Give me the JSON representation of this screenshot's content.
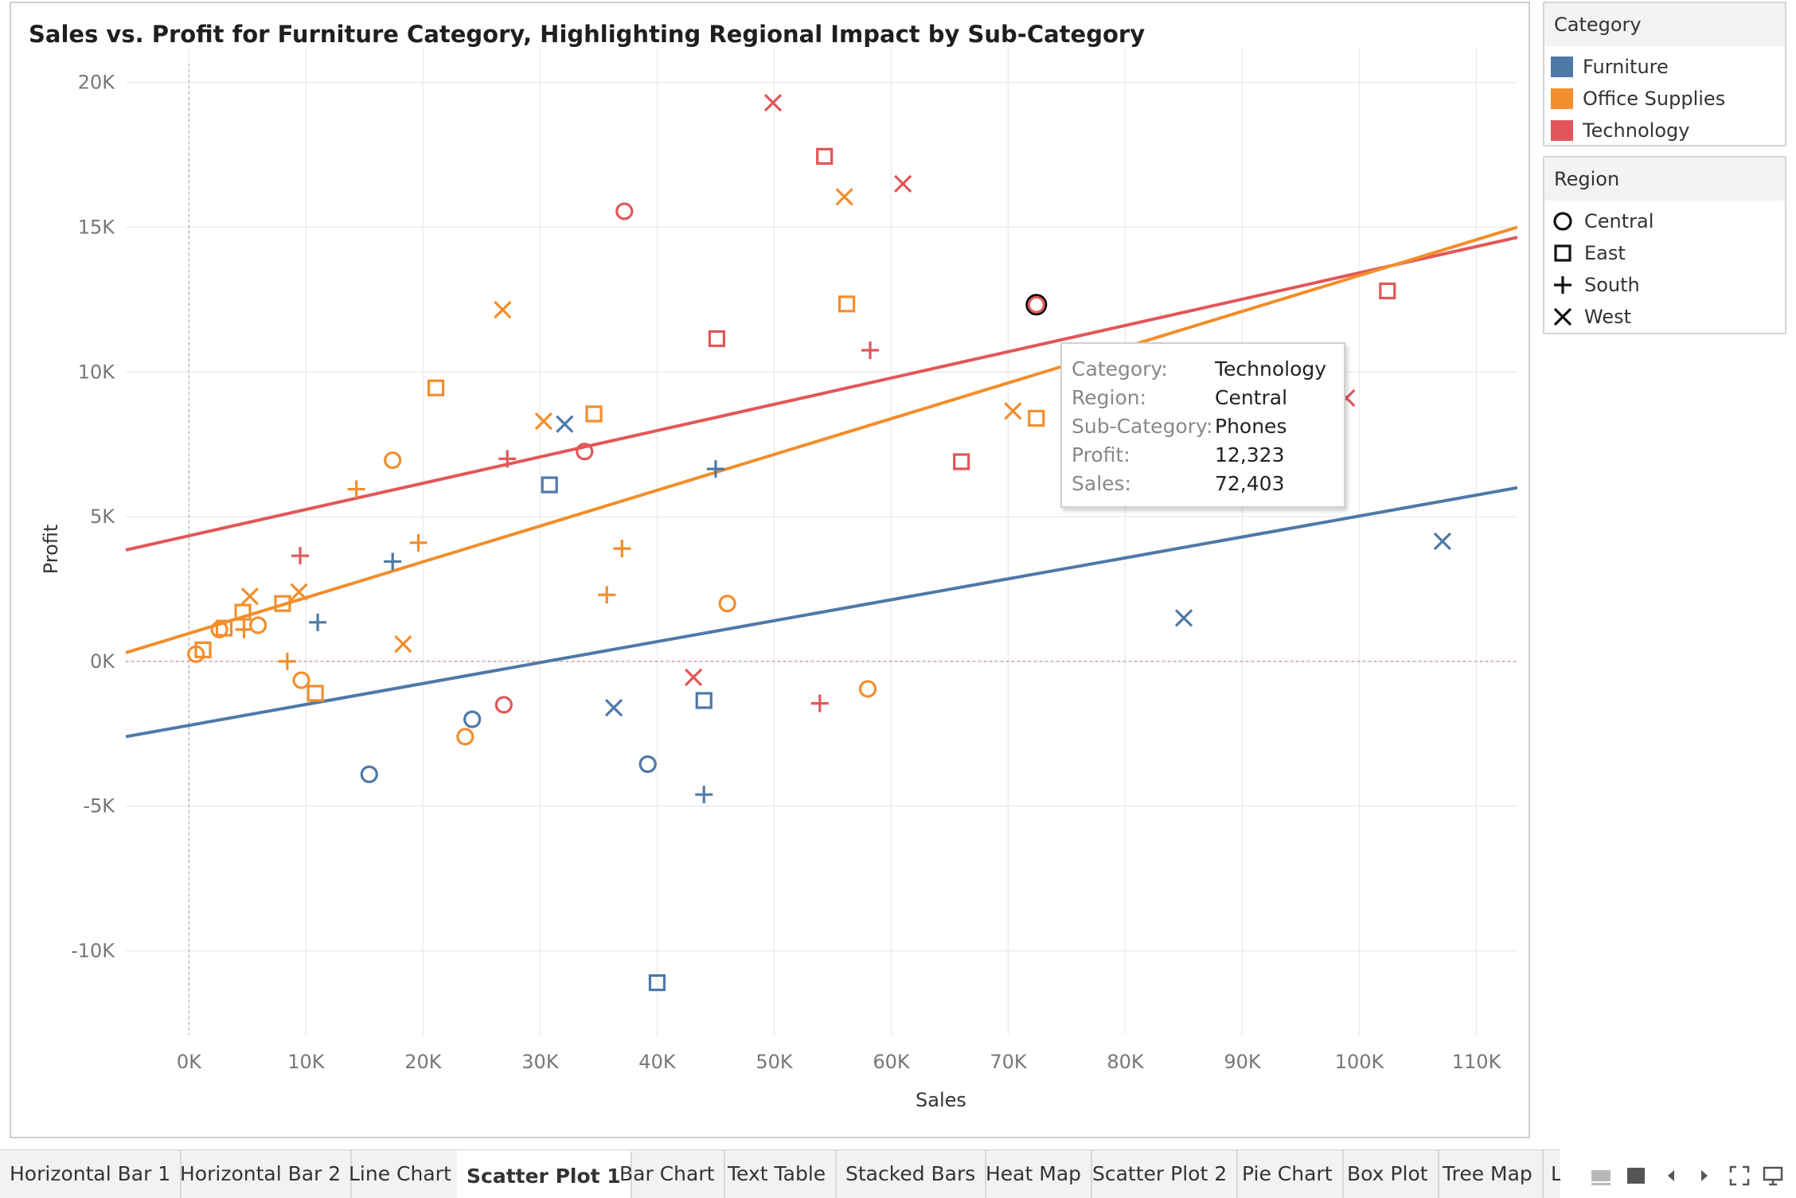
{
  "chart_data": {
    "type": "scatter",
    "title": "Sales vs. Profit for Furniture Category, Highlighting Regional Impact by Sub-Category",
    "xlabel": "Sales",
    "ylabel": "Profit",
    "xlim": [
      -5400,
      113500
    ],
    "ylim": [
      -12900,
      21200
    ],
    "xticks": [
      0,
      10000,
      20000,
      30000,
      40000,
      50000,
      60000,
      70000,
      80000,
      90000,
      100000,
      110000
    ],
    "xtick_labels": [
      "0K",
      "10K",
      "20K",
      "30K",
      "40K",
      "50K",
      "60K",
      "70K",
      "80K",
      "90K",
      "100K",
      "110K"
    ],
    "yticks": [
      -10000,
      -5000,
      0,
      5000,
      10000,
      15000,
      20000
    ],
    "ytick_labels": [
      "-10K",
      "-5K",
      "0K",
      "5K",
      "10K",
      "15K",
      "20K"
    ],
    "grid": true,
    "legend_position": "right",
    "series": [
      {
        "name": "Furniture",
        "color": "#4e79a7",
        "points": [
          {
            "x": 15400,
            "y": -3900,
            "shape": "circle"
          },
          {
            "x": 24200,
            "y": -2000,
            "shape": "circle"
          },
          {
            "x": 39200,
            "y": -3550,
            "shape": "circle"
          },
          {
            "x": 30800,
            "y": 6100,
            "shape": "square"
          },
          {
            "x": 44000,
            "y": -1350,
            "shape": "square"
          },
          {
            "x": 40000,
            "y": -11100,
            "shape": "square"
          },
          {
            "x": 17400,
            "y": 3450,
            "shape": "plus"
          },
          {
            "x": 11000,
            "y": 1350,
            "shape": "plus"
          },
          {
            "x": 45000,
            "y": 6650,
            "shape": "plus"
          },
          {
            "x": 44000,
            "y": -4600,
            "shape": "plus"
          },
          {
            "x": 32100,
            "y": 8200,
            "shape": "cross"
          },
          {
            "x": 36300,
            "y": -1600,
            "shape": "cross"
          },
          {
            "x": 85000,
            "y": 1500,
            "shape": "cross"
          },
          {
            "x": 107100,
            "y": 4150,
            "shape": "cross"
          }
        ]
      },
      {
        "name": "Office Supplies",
        "color": "#f28e2b",
        "points": [
          {
            "x": 17400,
            "y": 6950,
            "shape": "circle"
          },
          {
            "x": 600,
            "y": 250,
            "shape": "circle"
          },
          {
            "x": 2600,
            "y": 1100,
            "shape": "circle"
          },
          {
            "x": 5900,
            "y": 1250,
            "shape": "circle"
          },
          {
            "x": 9600,
            "y": -650,
            "shape": "circle"
          },
          {
            "x": 23600,
            "y": -2600,
            "shape": "circle"
          },
          {
            "x": 46000,
            "y": 2000,
            "shape": "circle"
          },
          {
            "x": 58000,
            "y": -950,
            "shape": "circle"
          },
          {
            "x": 21100,
            "y": 9450,
            "shape": "square"
          },
          {
            "x": 34600,
            "y": 8550,
            "shape": "square"
          },
          {
            "x": 56200,
            "y": 12350,
            "shape": "square"
          },
          {
            "x": 72400,
            "y": 8400,
            "shape": "square"
          },
          {
            "x": 1200,
            "y": 400,
            "shape": "square"
          },
          {
            "x": 3000,
            "y": 1150,
            "shape": "square"
          },
          {
            "x": 4600,
            "y": 1700,
            "shape": "square"
          },
          {
            "x": 8000,
            "y": 2000,
            "shape": "square"
          },
          {
            "x": 10800,
            "y": -1100,
            "shape": "square"
          },
          {
            "x": 14300,
            "y": 5950,
            "shape": "plus"
          },
          {
            "x": 19600,
            "y": 4100,
            "shape": "plus"
          },
          {
            "x": 37000,
            "y": 3900,
            "shape": "plus"
          },
          {
            "x": 35700,
            "y": 2300,
            "shape": "plus"
          },
          {
            "x": 8400,
            "y": 0,
            "shape": "plus"
          },
          {
            "x": 4700,
            "y": 1100,
            "shape": "plus"
          },
          {
            "x": 26800,
            "y": 12150,
            "shape": "cross"
          },
          {
            "x": 30300,
            "y": 8300,
            "shape": "cross"
          },
          {
            "x": 56000,
            "y": 16050,
            "shape": "cross"
          },
          {
            "x": 70400,
            "y": 8650,
            "shape": "cross"
          },
          {
            "x": 18300,
            "y": 600,
            "shape": "cross"
          },
          {
            "x": 9400,
            "y": 2400,
            "shape": "cross"
          },
          {
            "x": 5200,
            "y": 2250,
            "shape": "cross"
          }
        ]
      },
      {
        "name": "Technology",
        "color": "#e15759",
        "points": [
          {
            "x": 37200,
            "y": 15550,
            "shape": "circle"
          },
          {
            "x": 33800,
            "y": 7250,
            "shape": "circle"
          },
          {
            "x": 26900,
            "y": -1500,
            "shape": "circle"
          },
          {
            "x": 72403,
            "y": 12323,
            "shape": "circle",
            "selected": true
          },
          {
            "x": 54300,
            "y": 17450,
            "shape": "square"
          },
          {
            "x": 45100,
            "y": 11150,
            "shape": "square"
          },
          {
            "x": 66000,
            "y": 6900,
            "shape": "square"
          },
          {
            "x": 102400,
            "y": 12800,
            "shape": "square"
          },
          {
            "x": 27200,
            "y": 7000,
            "shape": "plus"
          },
          {
            "x": 9500,
            "y": 3650,
            "shape": "plus"
          },
          {
            "x": 58200,
            "y": 10750,
            "shape": "plus"
          },
          {
            "x": 53900,
            "y": -1450,
            "shape": "plus"
          },
          {
            "x": 49900,
            "y": 19300,
            "shape": "cross"
          },
          {
            "x": 61000,
            "y": 16500,
            "shape": "cross"
          },
          {
            "x": 43100,
            "y": -550,
            "shape": "cross"
          },
          {
            "x": 98900,
            "y": 9100,
            "shape": "cross"
          }
        ]
      }
    ],
    "trend_lines": [
      {
        "name": "Technology",
        "color": "#e15759",
        "x": [
          -5400,
          113500
        ],
        "y": [
          3850,
          14650
        ]
      },
      {
        "name": "Office Supplies",
        "color": "#f28e2b",
        "x": [
          -5400,
          113500
        ],
        "y": [
          300,
          15000
        ]
      },
      {
        "name": "Furniture",
        "color": "#4e79a7",
        "x": [
          -5400,
          113500
        ],
        "y": [
          -2600,
          6000
        ]
      }
    ]
  },
  "legend_category": {
    "title": "Category",
    "items": [
      {
        "label": "Furniture",
        "color": "#4e79a7"
      },
      {
        "label": "Office Supplies",
        "color": "#f28e2b"
      },
      {
        "label": "Technology",
        "color": "#e15759"
      }
    ]
  },
  "legend_region": {
    "title": "Region",
    "items": [
      {
        "label": "Central",
        "shape": "circle"
      },
      {
        "label": "East",
        "shape": "square"
      },
      {
        "label": "South",
        "shape": "plus"
      },
      {
        "label": "West",
        "shape": "cross"
      }
    ]
  },
  "tooltip": {
    "rows": [
      {
        "key": "Category:",
        "value": "Technology"
      },
      {
        "key": "Region:",
        "value": "Central"
      },
      {
        "key": "Sub-Category:",
        "value": "Phones"
      },
      {
        "key": "Profit:",
        "value": "12,323"
      },
      {
        "key": "Sales:",
        "value": "72,403"
      }
    ]
  },
  "tabs": {
    "items": [
      "Horizontal Bar 1",
      "Horizontal Bar 2",
      "Line Chart",
      "Scatter Plot 1",
      "Bar Chart",
      "Text Table",
      "Stacked Bars",
      "Heat Map",
      "Scatter Plot 2",
      "Pie Chart",
      "Box Plot",
      "Tree Map",
      "Li"
    ],
    "active": "Scatter Plot 1"
  }
}
